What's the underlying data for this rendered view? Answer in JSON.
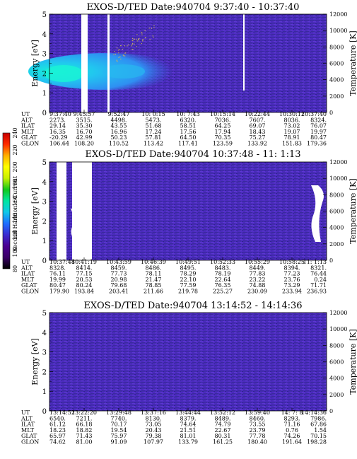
{
  "colorbar": {
    "label": "Second Harmonic Current",
    "ticks": [
      "240",
      "220",
      "200",
      "180",
      "160",
      "140",
      "120",
      "100",
      "80"
    ],
    "stops": [
      "#000000",
      "#3a0066",
      "#4b0091",
      "#3a2bd0",
      "#1e6eff",
      "#10c8e8",
      "#00e6a0",
      "#12c81a",
      "#c8f000",
      "#ffff00",
      "#ffb000",
      "#ff2a00",
      "#c80000"
    ]
  },
  "palette": {
    "background": "#ffffff",
    "plot_bg": "#4a26b6",
    "band_low": "#2f9af5",
    "band_high": "#16f0d8"
  },
  "chart_data": [
    {
      "type": "heatmap",
      "title": "EXOS-D/TED   Date:940704   9:37:40 - 10:37:40",
      "ylabel": "Energy [eV]",
      "ylabel_right": "Temperature [K]",
      "ylim": [
        0,
        5
      ],
      "yticks": [
        "0",
        "1",
        "2",
        "3",
        "4",
        "5"
      ],
      "ylim_right": [
        0,
        12000
      ],
      "yticks_right": [
        "0",
        "2000",
        "4000",
        "6000",
        "8000",
        "10000",
        "12000"
      ],
      "row_labels": [
        "UT",
        "ALT",
        "ILAT",
        "MLT",
        "GLAT",
        "GLON"
      ],
      "columns": [
        [
          "9:37:40",
          "2273.",
          "29.14",
          "16.35",
          "-20.29",
          "106.64"
        ],
        [
          "9:45:57",
          "3515.",
          "35.30",
          "16.70",
          "42.99",
          "108.20"
        ],
        [
          "9:52:47",
          "4498.",
          "43.55",
          "16.96",
          "50.23",
          "110.52"
        ],
        [
          "10: 0:15",
          "5473.",
          "51.68",
          "17.24",
          "57.81",
          "113.42"
        ],
        [
          "10: 7:43",
          "6320.",
          "58.51",
          "17.56",
          "64.50",
          "117.41"
        ],
        [
          "10:15:14",
          "7036.",
          "64.25",
          "17.94",
          "70.35",
          "123.59"
        ],
        [
          "10:22:44",
          "7607.",
          "69.07",
          "18.43",
          "75.27",
          "133.92"
        ],
        [
          "10:30:12",
          "8036.",
          "73.02",
          "19.07",
          "78.91",
          "151.83"
        ],
        [
          "10:37:40",
          "8324.",
          "76.07",
          "19.97",
          "80.47",
          "179.36"
        ]
      ],
      "features": [
        {
          "kind": "enhanced band",
          "energy_range": [
            1.2,
            3.0
          ],
          "peak_energy": 2.0,
          "span": [
            "9:37:40",
            "10:10"
          ]
        },
        {
          "kind": "data gap",
          "span": [
            "9:45:00",
            "9:46:20"
          ]
        },
        {
          "kind": "data gap",
          "span": [
            "9:51:20",
            "9:51:45"
          ]
        },
        {
          "kind": "data gap",
          "span": [
            "10:22:05",
            "10:22:25"
          ],
          "energy_range": [
            1.1,
            5.0
          ]
        }
      ]
    },
    {
      "type": "heatmap",
      "title": "EXOS-D/TED   Date:940704   10:37:48 - 11: 1:13",
      "ylabel": "Energy [eV]",
      "ylabel_right": "Temperature [K]",
      "ylim": [
        0,
        5
      ],
      "yticks": [
        "0",
        "1",
        "2",
        "3",
        "4",
        "5"
      ],
      "ylim_right": [
        0,
        12000
      ],
      "yticks_right": [
        "0",
        "2000",
        "4000",
        "6000",
        "8000",
        "10000",
        "12000"
      ],
      "row_labels": [
        "UT",
        "ALT",
        "ILAT",
        "MLT",
        "GLAT",
        "GLON"
      ],
      "columns": [
        [
          "10:37:48",
          "8328.",
          "76.11",
          "19.99",
          "80.47",
          "179.90"
        ],
        [
          "10:41:19",
          "8414.",
          "77.15",
          "20.53",
          "80.24",
          "193.84"
        ],
        [
          "10:43:59",
          "8459.",
          "77.73",
          "20.98",
          "79.68",
          "203.41"
        ],
        [
          "10:46:39",
          "8486.",
          "78.11",
          "21.47",
          "78.85",
          "211.66"
        ],
        [
          "10:49:51",
          "8495.",
          "78.29",
          "22.10",
          "77.59",
          "219.78"
        ],
        [
          "10:52:33",
          "8483.",
          "78.19",
          "22.64",
          "76.35",
          "225.27"
        ],
        [
          "10:55:29",
          "8449.",
          "77.83",
          "23.22",
          "74.88",
          "230.09"
        ],
        [
          "10:58:25",
          "8394.",
          "77.23",
          "23.76",
          "73.29",
          "233.94"
        ],
        [
          "11: 1:13",
          "8321.",
          "76.44",
          "0.24",
          "71.71",
          "236.93"
        ]
      ],
      "features": [
        {
          "kind": "data gap",
          "span": [
            "10:38:20",
            "10:38:40"
          ]
        },
        {
          "kind": "data gap",
          "span": [
            "10:40:35",
            "10:41:05"
          ]
        },
        {
          "kind": "data gap",
          "span": [
            "11: 0:15",
            "11: 0:45"
          ],
          "energy_range": [
            0.6,
            3.4
          ]
        }
      ]
    },
    {
      "type": "heatmap",
      "title": "EXOS-D/TED   Date:940704   13:14:52 - 14:14:36",
      "ylabel": "Energy [eV]",
      "ylabel_right": "Temperature [K]",
      "ylim": [
        0,
        5
      ],
      "yticks": [
        "0",
        "1",
        "2",
        "3",
        "4",
        "5"
      ],
      "ylim_right": [
        0,
        12000
      ],
      "yticks_right": [
        "0",
        "2000",
        "4000",
        "6000",
        "8000",
        "10000",
        "12000"
      ],
      "row_labels": [
        "UT",
        "ALT",
        "ILAT",
        "MLT",
        "GLAT",
        "GLON"
      ],
      "columns": [
        [
          "13:14:52",
          "6540.",
          "61.12",
          "18.23",
          "65.97",
          "74.62"
        ],
        [
          "13:22:20",
          "7211.",
          "66.18",
          "18.82",
          "71.43",
          "81.00"
        ],
        [
          "13:29:48",
          "7740.",
          "70.17",
          "19.54",
          "75.97",
          "91.09"
        ],
        [
          "13:37:16",
          "8130.",
          "73.05",
          "20.43",
          "79.38",
          "107.97"
        ],
        [
          "13:44:44",
          "8379.",
          "74.64",
          "21.51",
          "81.01",
          "133.79"
        ],
        [
          "13:52:12",
          "8489.",
          "74.79",
          "22.67",
          "80.31",
          "161.25"
        ],
        [
          "13:59:40",
          "8460.",
          "73.55",
          "23.79",
          "77.78",
          "180.40"
        ],
        [
          "14: 7: 8",
          "8293.",
          "71.16",
          "0.76",
          "74.26",
          "191.64"
        ],
        [
          "14:14:36",
          "7986.",
          "67.86",
          "1.54",
          "70.15",
          "198.28"
        ]
      ],
      "features": []
    }
  ]
}
